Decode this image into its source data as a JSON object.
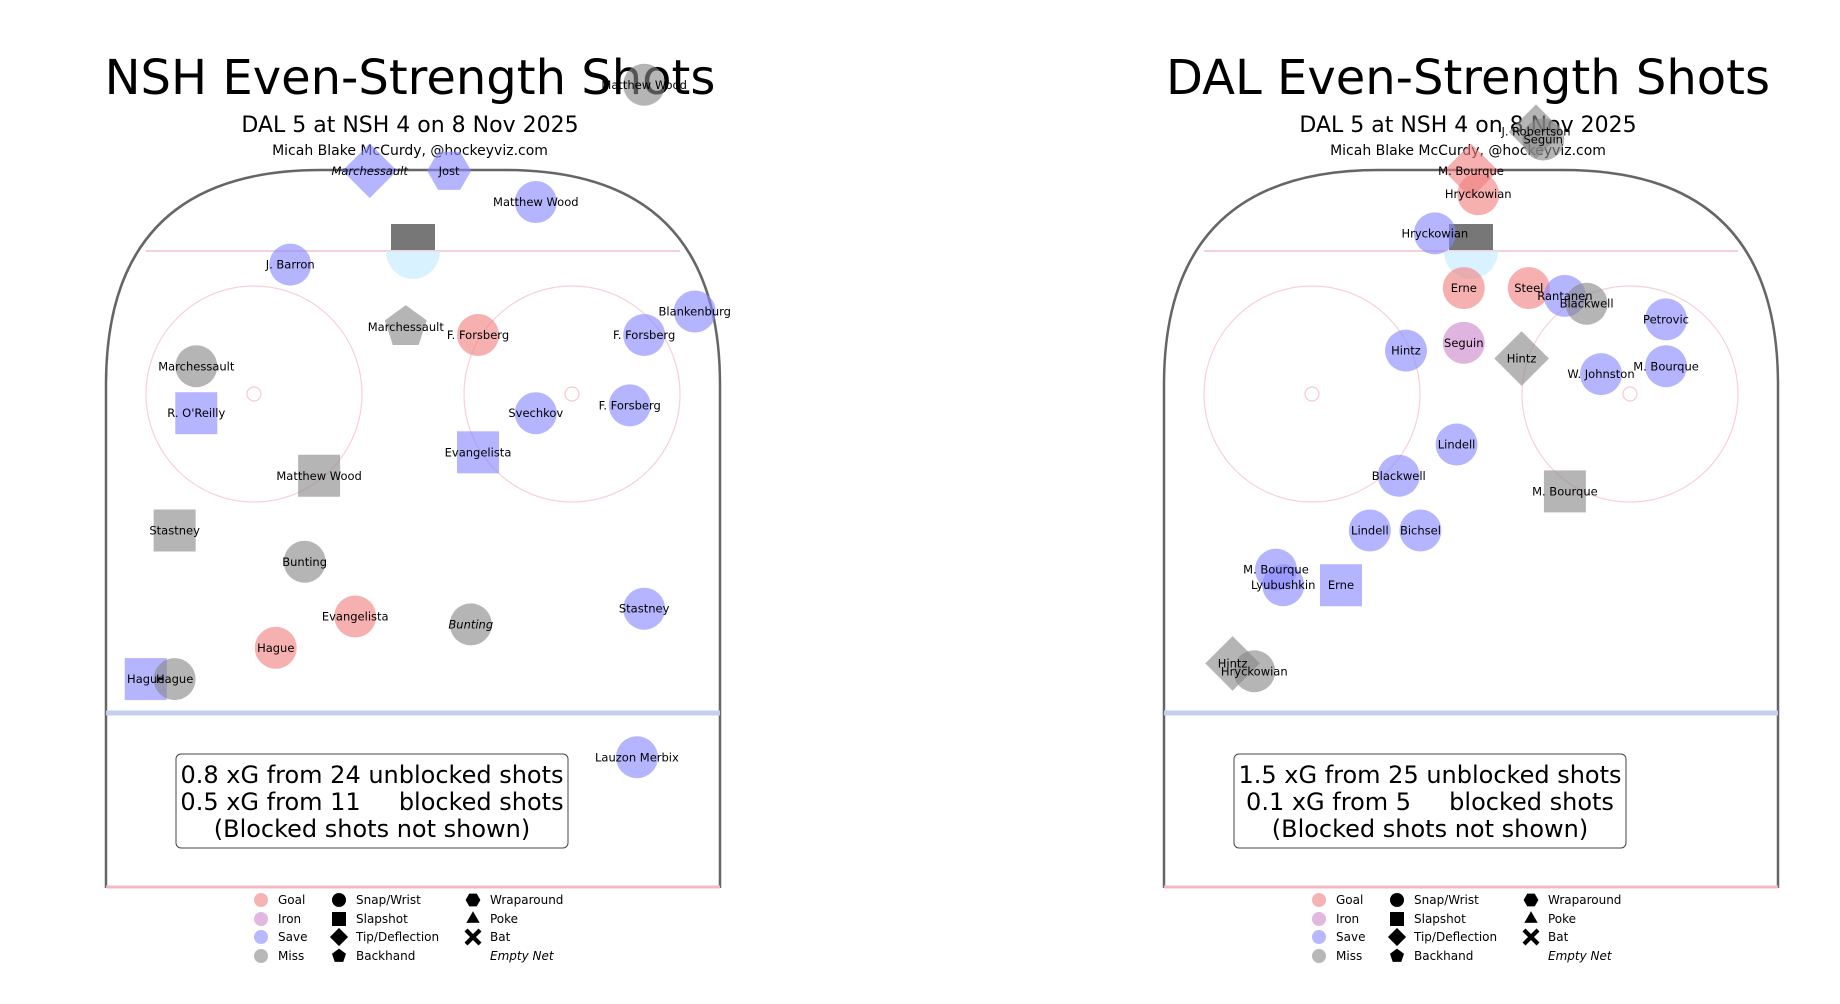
{
  "legend": {
    "results": [
      {
        "label": "Goal",
        "color": "#f08080"
      },
      {
        "label": "Iron",
        "color": "#cc88cc"
      },
      {
        "label": "Save",
        "color": "#8888ff"
      },
      {
        "label": "Miss",
        "color": "#888888"
      }
    ],
    "types_col1": [
      {
        "label": "Snap/Wrist",
        "shape": "circle"
      },
      {
        "label": "Slapshot",
        "shape": "square"
      },
      {
        "label": "Tip/Deflection",
        "shape": "diamond"
      },
      {
        "label": "Backhand",
        "shape": "pentagon"
      }
    ],
    "types_col2": [
      {
        "label": "Wraparound",
        "shape": "hexagon"
      },
      {
        "label": "Poke",
        "shape": "triangle"
      },
      {
        "label": "Bat",
        "shape": "x"
      }
    ],
    "empty_net": "Empty Net"
  },
  "chart_data": [
    {
      "type": "scatter",
      "title": "NSH Even-Strength Shots",
      "subtitle": "DAL 5 at NSH 4 on 8 Nov 2025",
      "credit": "Micah Blake McCurdy, @hockeyviz.com",
      "stats": [
        "0.8 xG from 24 unblocked shots",
        "0.5 xG from 11     blocked shots",
        "(Blocked shots not shown)"
      ],
      "shots": [
        {
          "name": "Matthew Wood",
          "x": 32,
          "y": 82,
          "result": "Miss",
          "shot": "Snap/Wrist"
        },
        {
          "name": "Marchessault",
          "x": -6,
          "y": 71,
          "result": "Save",
          "shot": "Tip/Deflection",
          "italic": true
        },
        {
          "name": "Jost",
          "x": 5,
          "y": 71,
          "result": "Save",
          "shot": "Wraparound"
        },
        {
          "name": "Matthew Wood",
          "x": 17,
          "y": 67,
          "result": "Save",
          "shot": "Snap/Wrist"
        },
        {
          "name": "J. Barron",
          "x": -17,
          "y": 59,
          "result": "Save",
          "shot": "Snap/Wrist"
        },
        {
          "name": "Blankenburg",
          "x": 39,
          "y": 53,
          "result": "Save",
          "shot": "Snap/Wrist"
        },
        {
          "name": "Marchessault",
          "x": -1,
          "y": 51,
          "result": "Miss",
          "shot": "Backhand"
        },
        {
          "name": "F. Forsberg",
          "x": 9,
          "y": 50,
          "result": "Goal",
          "shot": "Snap/Wrist"
        },
        {
          "name": "F. Forsberg",
          "x": 32,
          "y": 50,
          "result": "Save",
          "shot": "Snap/Wrist"
        },
        {
          "name": "Marchessault",
          "x": -30,
          "y": 46,
          "result": "Miss",
          "shot": "Snap/Wrist"
        },
        {
          "name": "R. O'Reilly",
          "x": -30,
          "y": 40,
          "result": "Save",
          "shot": "Slapshot"
        },
        {
          "name": "Svechkov",
          "x": 17,
          "y": 40,
          "result": "Save",
          "shot": "Snap/Wrist"
        },
        {
          "name": "F. Forsberg",
          "x": 30,
          "y": 41,
          "result": "Save",
          "shot": "Snap/Wrist"
        },
        {
          "name": "Evangelista",
          "x": 9,
          "y": 35,
          "result": "Save",
          "shot": "Slapshot"
        },
        {
          "name": "Matthew Wood",
          "x": -13,
          "y": 32,
          "result": "Miss",
          "shot": "Slapshot"
        },
        {
          "name": "Stastney",
          "x": -33,
          "y": 25,
          "result": "Miss",
          "shot": "Slapshot"
        },
        {
          "name": "Bunting",
          "x": -15,
          "y": 21,
          "result": "Miss",
          "shot": "Snap/Wrist"
        },
        {
          "name": "Evangelista",
          "x": -8,
          "y": 14,
          "result": "Goal",
          "shot": "Snap/Wrist"
        },
        {
          "name": "Bunting",
          "x": 8,
          "y": 13,
          "result": "Miss",
          "shot": "Snap/Wrist",
          "italic": true
        },
        {
          "name": "Stastney",
          "x": 32,
          "y": 15,
          "result": "Save",
          "shot": "Snap/Wrist"
        },
        {
          "name": "Hague",
          "x": -19,
          "y": 10,
          "result": "Goal",
          "shot": "Snap/Wrist"
        },
        {
          "name": "Hague",
          "x": -37,
          "y": 6,
          "result": "Save",
          "shot": "Slapshot"
        },
        {
          "name": "Hague",
          "x": -33,
          "y": 6,
          "result": "Miss",
          "shot": "Snap/Wrist"
        },
        {
          "name": "Lauzon Merbix",
          "x": 31,
          "y": -4,
          "result": "Save",
          "shot": "Snap/Wrist"
        }
      ]
    },
    {
      "type": "scatter",
      "title": "DAL Even-Strength Shots",
      "subtitle": "DAL 5 at NSH 4 on 8 Nov 2025",
      "credit": "Micah Blake McCurdy, @hockeyviz.com",
      "stats": [
        "1.5 xG from 25 unblocked shots",
        "0.1 xG from 5     blocked shots",
        "(Blocked shots not shown)"
      ],
      "shots": [
        {
          "name": "J. Robertson",
          "x": 9,
          "y": 76,
          "result": "Miss",
          "shot": "Tip/Deflection"
        },
        {
          "name": "Seguin",
          "x": 10,
          "y": 75,
          "result": "Miss",
          "shot": "Snap/Wrist"
        },
        {
          "name": "M. Bourque",
          "x": 0,
          "y": 71,
          "result": "Goal",
          "shot": "Tip/Deflection"
        },
        {
          "name": "Hryckowian",
          "x": 1,
          "y": 68,
          "result": "Goal",
          "shot": "Snap/Wrist"
        },
        {
          "name": "Hryckowian",
          "x": -5,
          "y": 63,
          "result": "Save",
          "shot": "Snap/Wrist"
        },
        {
          "name": "Erne",
          "x": -1,
          "y": 56,
          "result": "Goal",
          "shot": "Snap/Wrist"
        },
        {
          "name": "Steel",
          "x": 8,
          "y": 56,
          "result": "Goal",
          "shot": "Snap/Wrist"
        },
        {
          "name": "Rantanen",
          "x": 13,
          "y": 55,
          "result": "Save",
          "shot": "Snap/Wrist"
        },
        {
          "name": "Blackwell",
          "x": 16,
          "y": 54,
          "result": "Miss",
          "shot": "Snap/Wrist"
        },
        {
          "name": "Petrovic",
          "x": 27,
          "y": 52,
          "result": "Save",
          "shot": "Snap/Wrist"
        },
        {
          "name": "Hintz",
          "x": -9,
          "y": 48,
          "result": "Save",
          "shot": "Snap/Wrist"
        },
        {
          "name": "Seguin",
          "x": -1,
          "y": 49,
          "result": "Iron",
          "shot": "Snap/Wrist"
        },
        {
          "name": "Hintz",
          "x": 7,
          "y": 47,
          "result": "Miss",
          "shot": "Tip/Deflection"
        },
        {
          "name": "W. Johnston",
          "x": 18,
          "y": 45,
          "result": "Save",
          "shot": "Snap/Wrist"
        },
        {
          "name": "M. Bourque",
          "x": 27,
          "y": 46,
          "result": "Save",
          "shot": "Snap/Wrist"
        },
        {
          "name": "Lindell",
          "x": -2,
          "y": 36,
          "result": "Save",
          "shot": "Snap/Wrist"
        },
        {
          "name": "Blackwell",
          "x": -10,
          "y": 32,
          "result": "Save",
          "shot": "Snap/Wrist"
        },
        {
          "name": "M. Bourque",
          "x": 13,
          "y": 30,
          "result": "Miss",
          "shot": "Slapshot"
        },
        {
          "name": "Lindell",
          "x": -14,
          "y": 25,
          "result": "Save",
          "shot": "Snap/Wrist"
        },
        {
          "name": "Bichsel",
          "x": -7,
          "y": 25,
          "result": "Save",
          "shot": "Snap/Wrist"
        },
        {
          "name": "M. Bourque",
          "x": -27,
          "y": 20,
          "result": "Save",
          "shot": "Snap/Wrist"
        },
        {
          "name": "Lyubushkin",
          "x": -26,
          "y": 18,
          "result": "Save",
          "shot": "Snap/Wrist"
        },
        {
          "name": "Erne",
          "x": -18,
          "y": 18,
          "result": "Save",
          "shot": "Slapshot"
        },
        {
          "name": "Hintz",
          "x": -33,
          "y": 8,
          "result": "Miss",
          "shot": "Tip/Deflection"
        },
        {
          "name": "Hryckowian",
          "x": -30,
          "y": 7,
          "result": "Miss",
          "shot": "Snap/Wrist"
        }
      ]
    }
  ]
}
